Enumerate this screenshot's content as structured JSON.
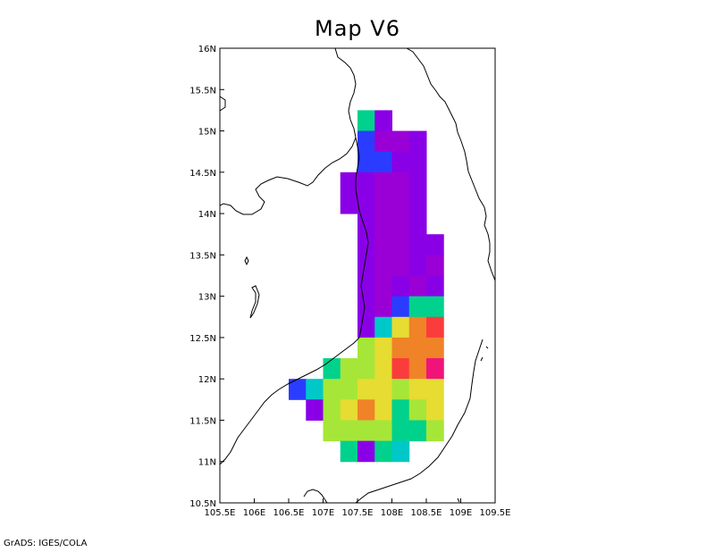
{
  "title": "Map V6",
  "credit": "GrADS: IGES/COLA",
  "map": {
    "lon_range": [
      105.5,
      109.5
    ],
    "lat_range": [
      10.5,
      16.0
    ],
    "x_ticks": [
      "105.5E",
      "106E",
      "106.5E",
      "107E",
      "107.5E",
      "108E",
      "108.5E",
      "109E",
      "109.5E"
    ],
    "y_ticks": [
      "10.5N",
      "11N",
      "11.5N",
      "12N",
      "12.5N",
      "13N",
      "13.5N",
      "14N",
      "14.5N",
      "15N",
      "15.5N",
      "16N"
    ],
    "grid_step_deg": 0.25
  },
  "colors": {
    "A": "#00d18c",
    "B": "#8a00e6",
    "C": "#9a00d6",
    "D": "#2a3cff",
    "E": "#a6e639",
    "F": "#e6dc32",
    "G": "#f08228",
    "H": "#fa3c3c",
    "I": "#f0147a",
    "J": "#00c8c8"
  },
  "grid": [
    {
      "lat": 15.125,
      "cells": [
        [
          107.625,
          "A"
        ],
        [
          107.875,
          "B"
        ]
      ]
    },
    {
      "lat": 14.875,
      "cells": [
        [
          107.625,
          "D"
        ],
        [
          107.875,
          "C"
        ],
        [
          108.125,
          "C"
        ],
        [
          108.375,
          "B"
        ]
      ]
    },
    {
      "lat": 14.625,
      "cells": [
        [
          107.625,
          "D"
        ],
        [
          107.875,
          "D"
        ],
        [
          108.125,
          "B"
        ],
        [
          108.375,
          "B"
        ]
      ]
    },
    {
      "lat": 14.375,
      "cells": [
        [
          107.375,
          "B"
        ],
        [
          107.625,
          "B"
        ],
        [
          107.875,
          "C"
        ],
        [
          108.125,
          "C"
        ],
        [
          108.375,
          "B"
        ]
      ]
    },
    {
      "lat": 14.125,
      "cells": [
        [
          107.375,
          "B"
        ],
        [
          107.625,
          "B"
        ],
        [
          107.875,
          "C"
        ],
        [
          108.125,
          "C"
        ],
        [
          108.375,
          "B"
        ]
      ]
    },
    {
      "lat": 13.875,
      "cells": [
        [
          107.625,
          "B"
        ],
        [
          107.875,
          "C"
        ],
        [
          108.125,
          "C"
        ],
        [
          108.375,
          "B"
        ]
      ]
    },
    {
      "lat": 13.625,
      "cells": [
        [
          107.625,
          "B"
        ],
        [
          107.875,
          "C"
        ],
        [
          108.125,
          "C"
        ],
        [
          108.375,
          "B"
        ],
        [
          108.625,
          "B"
        ]
      ]
    },
    {
      "lat": 13.375,
      "cells": [
        [
          107.625,
          "B"
        ],
        [
          107.875,
          "C"
        ],
        [
          108.125,
          "C"
        ],
        [
          108.375,
          "B"
        ],
        [
          108.625,
          "C"
        ]
      ]
    },
    {
      "lat": 13.125,
      "cells": [
        [
          107.625,
          "B"
        ],
        [
          107.875,
          "C"
        ],
        [
          108.125,
          "B"
        ],
        [
          108.375,
          "C"
        ],
        [
          108.625,
          "B"
        ]
      ]
    },
    {
      "lat": 12.875,
      "cells": [
        [
          107.625,
          "B"
        ],
        [
          107.875,
          "C"
        ],
        [
          108.125,
          "D"
        ],
        [
          108.375,
          "A"
        ],
        [
          108.625,
          "A"
        ]
      ]
    },
    {
      "lat": 12.625,
      "cells": [
        [
          107.625,
          "B"
        ],
        [
          107.875,
          "J"
        ],
        [
          108.125,
          "F"
        ],
        [
          108.375,
          "G"
        ],
        [
          108.625,
          "H"
        ]
      ]
    },
    {
      "lat": 12.375,
      "cells": [
        [
          107.625,
          "E"
        ],
        [
          107.875,
          "F"
        ],
        [
          108.125,
          "G"
        ],
        [
          108.375,
          "G"
        ],
        [
          108.625,
          "G"
        ]
      ]
    },
    {
      "lat": 12.125,
      "cells": [
        [
          107.125,
          "A"
        ],
        [
          107.375,
          "E"
        ],
        [
          107.625,
          "E"
        ],
        [
          107.875,
          "F"
        ],
        [
          108.125,
          "H"
        ],
        [
          108.375,
          "G"
        ],
        [
          108.625,
          "I"
        ]
      ]
    },
    {
      "lat": 11.875,
      "cells": [
        [
          106.625,
          "D"
        ],
        [
          106.875,
          "J"
        ],
        [
          107.125,
          "E"
        ],
        [
          107.375,
          "E"
        ],
        [
          107.625,
          "F"
        ],
        [
          107.875,
          "F"
        ],
        [
          108.125,
          "E"
        ],
        [
          108.375,
          "F"
        ],
        [
          108.625,
          "F"
        ]
      ]
    },
    {
      "lat": 11.625,
      "cells": [
        [
          106.875,
          "B"
        ],
        [
          107.125,
          "E"
        ],
        [
          107.375,
          "F"
        ],
        [
          107.625,
          "G"
        ],
        [
          107.875,
          "F"
        ],
        [
          108.125,
          "A"
        ],
        [
          108.375,
          "E"
        ],
        [
          108.625,
          "F"
        ]
      ]
    },
    {
      "lat": 11.375,
      "cells": [
        [
          107.125,
          "E"
        ],
        [
          107.375,
          "E"
        ],
        [
          107.625,
          "E"
        ],
        [
          107.875,
          "E"
        ],
        [
          108.125,
          "A"
        ],
        [
          108.375,
          "A"
        ],
        [
          108.625,
          "E"
        ]
      ]
    },
    {
      "lat": 11.125,
      "cells": [
        [
          107.375,
          "A"
        ],
        [
          107.625,
          "B"
        ],
        [
          107.875,
          "A"
        ],
        [
          108.125,
          "J"
        ]
      ]
    }
  ]
}
